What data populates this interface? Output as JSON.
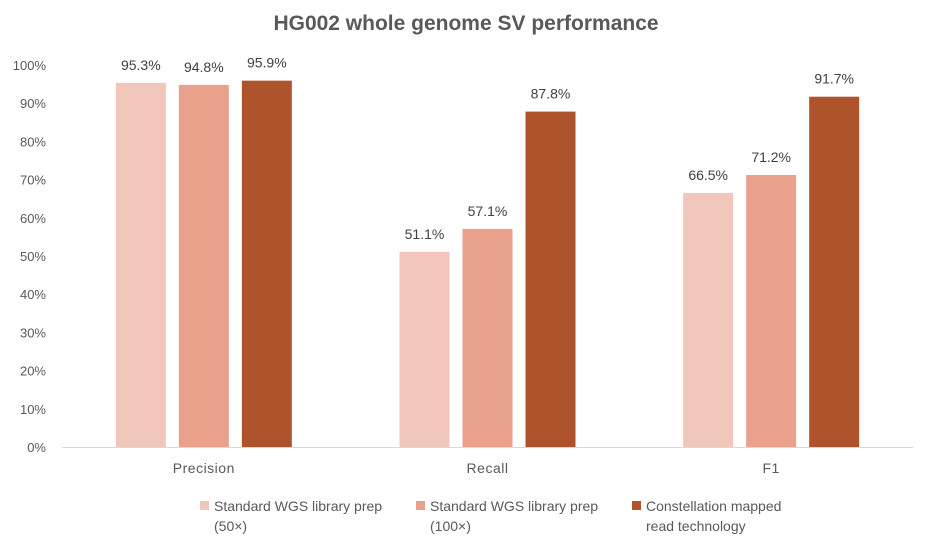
{
  "chart_data": {
    "type": "bar",
    "title": "HG002 whole genome SV performance",
    "categories": [
      "Precision",
      "Recall",
      "F1"
    ],
    "series": [
      {
        "name": "Standard WGS library prep (50×)",
        "line1": "Standard WGS library prep",
        "line2": "(50×)",
        "color": "#F1C7BC",
        "values": [
          95.3,
          51.1,
          66.5
        ],
        "labels": [
          "95.3%",
          "51.1%",
          "66.5%"
        ]
      },
      {
        "name": "Standard WGS library prep (100×)",
        "line1": "Standard WGS library prep",
        "line2": "(100×)",
        "color": "#E9A18C",
        "values": [
          94.8,
          57.1,
          71.2
        ],
        "labels": [
          "94.8%",
          "57.1%",
          "71.2%"
        ]
      },
      {
        "name": "Constellation mapped read technology",
        "line1": "Constellation mapped",
        "line2": "read technology",
        "color": "#AD542D",
        "values": [
          95.9,
          87.8,
          91.7
        ],
        "labels": [
          "95.9%",
          "87.8%",
          "91.7%"
        ]
      }
    ],
    "ylim": [
      0,
      100
    ],
    "yticks": [
      "0%",
      "10%",
      "20%",
      "30%",
      "40%",
      "50%",
      "60%",
      "70%",
      "80%",
      "90%",
      "100%"
    ],
    "xlabel": "",
    "ylabel": "",
    "legend": "bottom",
    "grid": false
  }
}
